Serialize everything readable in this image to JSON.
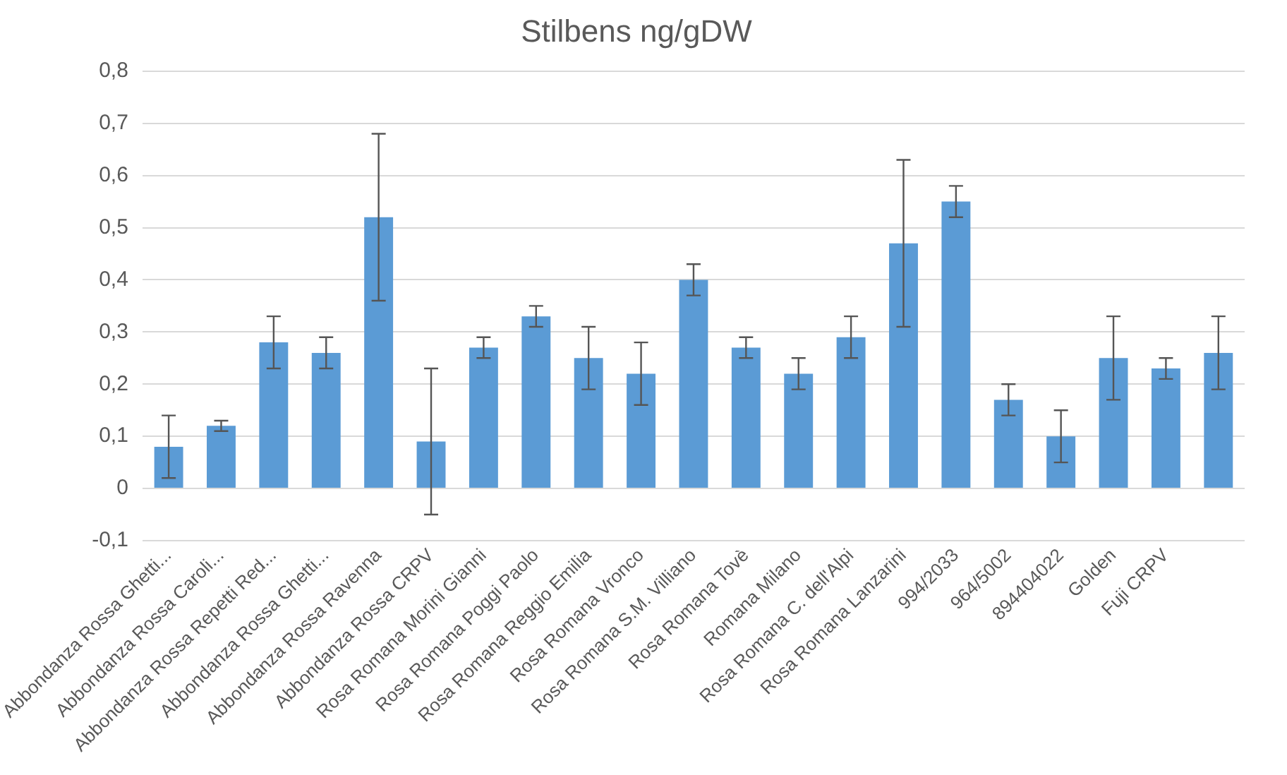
{
  "chart_data": {
    "type": "bar",
    "title": "Stilbens ng/gDW",
    "categories": [
      "Abbondanza Rossa Ghetti...",
      "Abbondanza Rossa Caroli...",
      "Abbondanza Rossa Repetti Red...",
      "Abbondanza Rossa Ghetti...",
      "Abbondanza Rossa Ravenna",
      "Abbondanza Rossa CRPV",
      "Rosa Romana Morini Gianni",
      "Rosa Romana Poggi Paolo",
      "Rosa Romana Reggio Emilia",
      "Rosa Romana Vronco",
      "Rosa Romana S.M. Villiano",
      "Rosa Romana Tovè",
      "Romana Milano",
      "Rosa Romana C. dell'Alpi",
      "Rosa Romana Lanzarini",
      "994/2033",
      "964/5002",
      "894404022",
      "Golden",
      "Fuji CRPV",
      null
    ],
    "values": [
      0.08,
      0.12,
      0.28,
      0.26,
      0.52,
      0.09,
      0.27,
      0.33,
      0.25,
      0.22,
      0.4,
      0.27,
      0.22,
      0.29,
      0.47,
      0.55,
      0.17,
      0.1,
      0.25,
      0.23,
      0.26
    ],
    "errors": [
      0.06,
      0.01,
      0.05,
      0.03,
      0.16,
      0.14,
      0.02,
      0.02,
      0.06,
      0.06,
      0.03,
      0.02,
      0.03,
      0.04,
      0.16,
      0.03,
      0.03,
      0.05,
      0.08,
      0.02,
      0.07
    ],
    "color": "#5b9bd5",
    "ylim": [
      -0.1,
      0.8
    ],
    "yticks": [
      {
        "value": -0.1,
        "label": "-0,1"
      },
      {
        "value": 0,
        "label": "0"
      },
      {
        "value": 0.1,
        "label": "0,1"
      },
      {
        "value": 0.2,
        "label": "0,2"
      },
      {
        "value": 0.3,
        "label": "0,3"
      },
      {
        "value": 0.4,
        "label": "0,4"
      },
      {
        "value": 0.5,
        "label": "0,5"
      },
      {
        "value": 0.6,
        "label": "0,6"
      },
      {
        "value": 0.7,
        "label": "0,7"
      },
      {
        "value": 0.8,
        "label": "0,8"
      }
    ],
    "grid": "y",
    "legend": false
  }
}
